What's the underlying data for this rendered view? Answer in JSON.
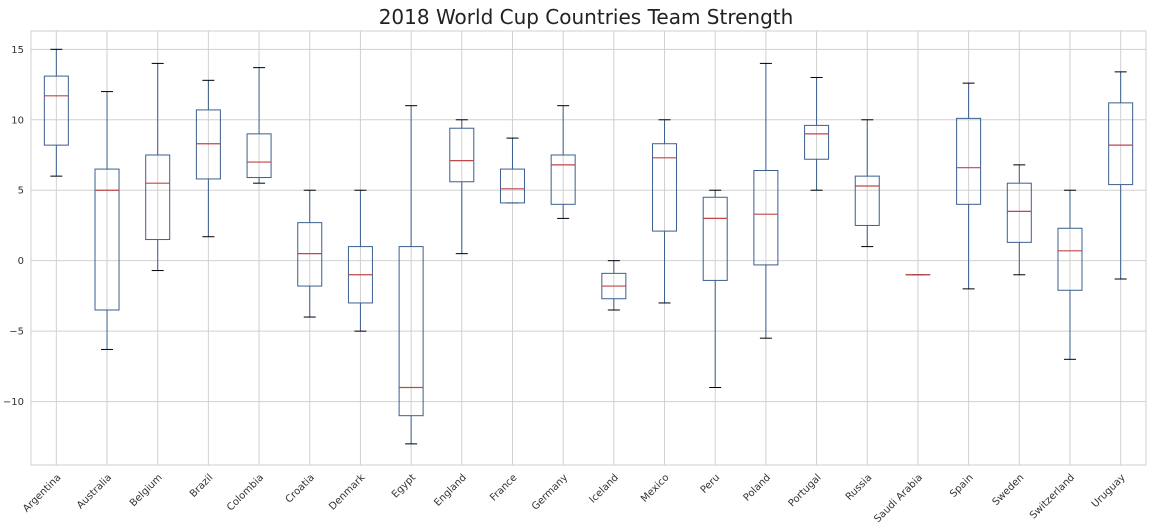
{
  "chart_data": {
    "type": "box",
    "title": "2018 World Cup Countries Team Strength",
    "xlabel": "",
    "ylabel": "",
    "ylim": [
      -14.5,
      16.3
    ],
    "yticks": [
      -10,
      -5,
      0,
      5,
      10,
      15
    ],
    "ytick_labels": [
      "−10",
      "−5",
      "0",
      "5",
      "10",
      "15"
    ],
    "grid": true,
    "colors": {
      "box": "#3b5f8f",
      "median": "#c0474b",
      "whisker_cap": "#000000",
      "grid": "#d0d0d0",
      "frame": "#cfcfcf"
    },
    "categories": [
      "Argentina",
      "Australia",
      "Belgium",
      "Brazil",
      "Colombia",
      "Croatia",
      "Denmark",
      "Egypt",
      "England",
      "France",
      "Germany",
      "Iceland",
      "Mexico",
      "Peru",
      "Poland",
      "Portugal",
      "Russia",
      "Saudi Arabia",
      "Spain",
      "Sweden",
      "Switzerland",
      "Uruguay"
    ],
    "boxes": [
      {
        "whislo": 6,
        "q1": 8.2,
        "med": 11.7,
        "q3": 13.1,
        "whishi": 15
      },
      {
        "whislo": -6.3,
        "q1": -3.5,
        "med": 5,
        "q3": 6.5,
        "whishi": 12
      },
      {
        "whislo": -0.7,
        "q1": 1.5,
        "med": 5.5,
        "q3": 7.5,
        "whishi": 14
      },
      {
        "whislo": 1.7,
        "q1": 5.8,
        "med": 8.3,
        "q3": 10.7,
        "whishi": 12.8
      },
      {
        "whislo": 5.5,
        "q1": 5.9,
        "med": 7,
        "q3": 9,
        "whishi": 13.7
      },
      {
        "whislo": -4,
        "q1": -1.8,
        "med": 0.5,
        "q3": 2.7,
        "whishi": 5
      },
      {
        "whislo": -5,
        "q1": -3,
        "med": -1,
        "q3": 1,
        "whishi": 5
      },
      {
        "whislo": -13,
        "q1": -11,
        "med": -9,
        "q3": 1,
        "whishi": 11
      },
      {
        "whislo": 0.5,
        "q1": 5.6,
        "med": 7.1,
        "q3": 9.4,
        "whishi": 10
      },
      {
        "whislo": 4.1,
        "q1": 4.1,
        "med": 5.1,
        "q3": 6.5,
        "whishi": 8.7
      },
      {
        "whislo": 3,
        "q1": 4,
        "med": 6.8,
        "q3": 7.5,
        "whishi": 11
      },
      {
        "whislo": -3.5,
        "q1": -2.7,
        "med": -1.8,
        "q3": -0.9,
        "whishi": 0
      },
      {
        "whislo": -3,
        "q1": 2.1,
        "med": 7.3,
        "q3": 8.3,
        "whishi": 10
      },
      {
        "whislo": -9,
        "q1": -1.4,
        "med": 3,
        "q3": 4.5,
        "whishi": 5
      },
      {
        "whislo": -5.5,
        "q1": -0.3,
        "med": 3.3,
        "q3": 6.4,
        "whishi": 14
      },
      {
        "whislo": 5,
        "q1": 7.2,
        "med": 9,
        "q3": 9.6,
        "whishi": 13
      },
      {
        "whislo": 1,
        "q1": 2.5,
        "med": 5.3,
        "q3": 6,
        "whishi": 10
      },
      {
        "whislo": -1,
        "q1": -1,
        "med": -1,
        "q3": -1,
        "whishi": -1
      },
      {
        "whislo": -2,
        "q1": 4,
        "med": 6.6,
        "q3": 10.1,
        "whishi": 12.6
      },
      {
        "whislo": -1,
        "q1": 1.3,
        "med": 3.5,
        "q3": 5.5,
        "whishi": 6.8
      },
      {
        "whislo": -7,
        "q1": -2.1,
        "med": 0.7,
        "q3": 2.3,
        "whishi": 5
      },
      {
        "whislo": -1.3,
        "q1": 5.4,
        "med": 8.2,
        "q3": 11.2,
        "whishi": 13.4
      }
    ]
  }
}
